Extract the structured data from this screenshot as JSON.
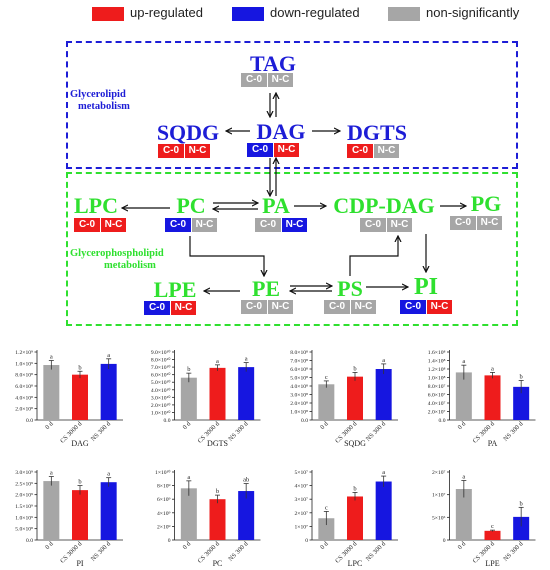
{
  "legend": [
    {
      "label": "up-regulated",
      "color": "#ee1c1c"
    },
    {
      "label": "down-regulated",
      "color": "#1616e0"
    },
    {
      "label": "non-significantly",
      "color": "#a6a6a6"
    }
  ],
  "regions": {
    "glycerolipid": {
      "label_line1": "Glycerolipid",
      "label_line2": "metabolism",
      "color": "#1d1dd6"
    },
    "glycerophospholipid": {
      "label_line1": "Glycerophospholipid",
      "label_line2": "metabolism",
      "color": "#2fe02f"
    }
  },
  "status_labels": {
    "c0": "C-0",
    "nc": "N-C"
  },
  "colors": {
    "up": "#ee1c1c",
    "down": "#1616e0",
    "ns": "#a6a6a6"
  },
  "lipids": {
    "tag": {
      "name": "TAG",
      "c0": "ns",
      "nc": "ns"
    },
    "sqdg": {
      "name": "SQDG",
      "c0": "up",
      "nc": "up"
    },
    "dag": {
      "name": "DAG",
      "c0": "down",
      "nc": "up"
    },
    "dgts": {
      "name": "DGTS",
      "c0": "up",
      "nc": "ns"
    },
    "lpc": {
      "name": "LPC",
      "c0": "up",
      "nc": "up"
    },
    "pc": {
      "name": "PC",
      "c0": "down",
      "nc": "ns"
    },
    "pa": {
      "name": "PA",
      "c0": "ns",
      "nc": "down"
    },
    "cdpdag": {
      "name": "CDP-DAG",
      "c0": "ns",
      "nc": "ns"
    },
    "pg": {
      "name": "PG",
      "c0": "ns",
      "nc": "ns"
    },
    "lpe": {
      "name": "LPE",
      "c0": "down",
      "nc": "up"
    },
    "pe": {
      "name": "PE",
      "c0": "ns",
      "nc": "ns"
    },
    "ps": {
      "name": "PS",
      "c0": "ns",
      "nc": "ns"
    },
    "pi": {
      "name": "PI",
      "c0": "down",
      "nc": "up"
    }
  },
  "chart_data": [
    {
      "type": "bar",
      "xlabel": "DAG",
      "categories": [
        "0 d",
        "CS 3000 d",
        "NS 300 d"
      ],
      "values": [
        970000000.0,
        800000000.0,
        990000000.0
      ],
      "errors": [
        80000000.0,
        60000000.0,
        90000000.0
      ],
      "letters": [
        "a",
        "b",
        "a"
      ],
      "yticks": [
        "0.0",
        "2.0×10⁸",
        "4.0×10⁸",
        "6.0×10⁸",
        "8.0×10⁸",
        "1.0×10⁹",
        "1.2×10⁹"
      ],
      "ylim": [
        0,
        1200000000.0
      ]
    },
    {
      "type": "bar",
      "xlabel": "DGTS",
      "categories": [
        "0 d",
        "CS 3000 d",
        "NS 300 d"
      ],
      "values": [
        56000000000.0,
        69000000000.0,
        70000000000.0
      ],
      "errors": [
        6000000000.0,
        4000000000.0,
        6000000000.0
      ],
      "letters": [
        "b",
        "a",
        "a"
      ],
      "yticks": [
        "0.0",
        "1.0×10¹⁰",
        "2.0×10¹⁰",
        "3.0×10¹⁰",
        "4.0×10¹⁰",
        "5.0×10¹⁰",
        "6.0×10¹⁰",
        "7.0×10¹⁰",
        "8.0×10¹⁰",
        "9.0×10¹⁰"
      ],
      "ylim": [
        0,
        90000000000.0
      ]
    },
    {
      "type": "bar",
      "xlabel": "SQDG",
      "categories": [
        "0 d",
        "CS 3000 d",
        "NS 300 d"
      ],
      "values": [
        420000000.0,
        510000000.0,
        600000000.0
      ],
      "errors": [
        40000000.0,
        50000000.0,
        60000000.0
      ],
      "letters": [
        "c",
        "b",
        "a"
      ],
      "yticks": [
        "0.0",
        "1.0×10⁸",
        "2.0×10⁸",
        "3.0×10⁸",
        "4.0×10⁸",
        "5.0×10⁸",
        "6.0×10⁸",
        "7.0×10⁸",
        "8.0×10⁸"
      ],
      "ylim": [
        0,
        800000000.0
      ]
    },
    {
      "type": "bar",
      "xlabel": "PA",
      "categories": [
        "0 d",
        "CS 3000 d",
        "NS 300 d"
      ],
      "values": [
        112000000.0,
        105000000.0,
        78000000.0
      ],
      "errors": [
        17000000.0,
        7000000.0,
        15000000.0
      ],
      "letters": [
        "a",
        "a",
        "b"
      ],
      "yticks": [
        "0.0",
        "2.0×10⁷",
        "4.0×10⁷",
        "6.0×10⁷",
        "8.0×10⁷",
        "1.0×10⁸",
        "1.2×10⁸",
        "1.4×10⁸",
        "1.6×10⁸"
      ],
      "ylim": [
        0,
        160000000.0
      ]
    },
    {
      "type": "bar",
      "xlabel": "PI",
      "categories": [
        "0 d",
        "CS 3000 d",
        "NS 300 d"
      ],
      "values": [
        2600000000.0,
        2200000000.0,
        2550000000.0
      ],
      "errors": [
        200000000.0,
        200000000.0,
        200000000.0
      ],
      "letters": [
        "a",
        "b",
        "a"
      ],
      "yticks": [
        "0.0",
        "5.0×10⁸",
        "1.0×10⁹",
        "1.5×10⁹",
        "2.0×10⁹",
        "2.5×10⁹",
        "3.0×10⁹"
      ],
      "ylim": [
        0,
        3000000000.0
      ]
    },
    {
      "type": "bar",
      "xlabel": "PC",
      "categories": [
        "0 d",
        "CS 3000 d",
        "NS 300 d"
      ],
      "values": [
        7600000000.0,
        6000000000.0,
        7200000000.0
      ],
      "errors": [
        1100000000.0,
        600000000.0,
        1100000000.0
      ],
      "letters": [
        "a",
        "b",
        "ab"
      ],
      "yticks": [
        "0",
        "2×10⁹",
        "4×10⁹",
        "6×10⁹",
        "8×10⁹",
        "1×10¹⁰"
      ],
      "ylim": [
        0,
        10000000000.0
      ]
    },
    {
      "type": "bar",
      "xlabel": "LPC",
      "categories": [
        "0 d",
        "CS 3000 d",
        "NS 300 d"
      ],
      "values": [
        16000000.0,
        32000000.0,
        43000000.0
      ],
      "errors": [
        5000000.0,
        3000000.0,
        4000000.0
      ],
      "letters": [
        "c",
        "b",
        "a"
      ],
      "yticks": [
        "0",
        "1×10⁷",
        "2×10⁷",
        "3×10⁷",
        "4×10⁷",
        "5×10⁷"
      ],
      "ylim": [
        0,
        50000000.0
      ]
    },
    {
      "type": "bar",
      "xlabel": "LPE",
      "categories": [
        "0 d",
        "CS 3000 d",
        "NS 300 d"
      ],
      "values": [
        15000000.0,
        2700000.0,
        6800000.0
      ],
      "errors": [
        2500000.0,
        200000.0,
        2800000.0
      ],
      "letters": [
        "a",
        "c",
        "b"
      ],
      "yticks": [
        "0",
        "5×10⁶",
        "1×10⁷",
        "2×10⁷"
      ],
      "ylim": [
        0,
        20000000.0
      ]
    }
  ]
}
